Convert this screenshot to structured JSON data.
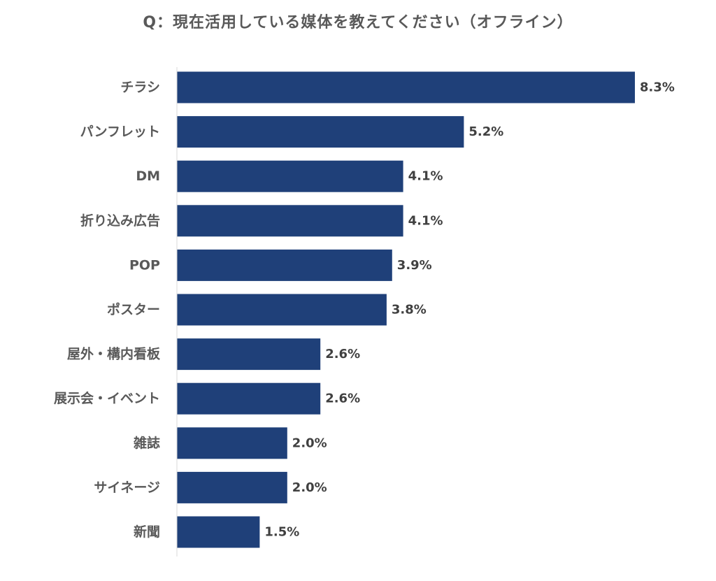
{
  "chart_data": {
    "type": "bar",
    "orientation": "horizontal",
    "title": "Q：現在活用している媒体を教えてください（オフライン）",
    "categories": [
      "チラシ",
      "パンフレット",
      "DM",
      "折り込み広告",
      "POP",
      "ポスター",
      "屋外・構内看板",
      "展示会・イベント",
      "雑誌",
      "サイネージ",
      "新聞"
    ],
    "values": [
      8.3,
      5.2,
      4.1,
      4.1,
      3.9,
      3.8,
      2.6,
      2.6,
      2.0,
      2.0,
      1.5
    ],
    "value_labels": [
      "8.3%",
      "5.2%",
      "4.1%",
      "4.1%",
      "3.9%",
      "3.8%",
      "2.6%",
      "2.6%",
      "2.0%",
      "2.0%",
      "1.5%"
    ],
    "unit": "%",
    "xlim": [
      0,
      8.3
    ],
    "grid": false,
    "bar_color": "#1f4079",
    "axis_color": "#d9d9d9"
  }
}
